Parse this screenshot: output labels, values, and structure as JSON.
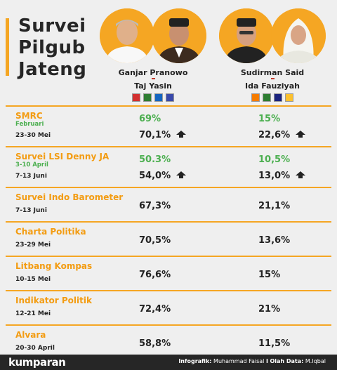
{
  "title": "Survei\nPilgub\nJateng",
  "candidates": [
    {
      "names": [
        "Ganjar Pranowo",
        "Taj Yasin"
      ],
      "logos": [
        "#d32f2f",
        "#2e7d32",
        "#1565c0",
        "#3949ab"
      ]
    },
    {
      "names": [
        "Sudirman Said",
        "Ida Fauziyah"
      ],
      "logos": [
        "#f57c00",
        "#2e7d32",
        "#1a237e",
        "#fbc02d"
      ]
    }
  ],
  "rows": [
    {
      "pollster": "SMRC",
      "earlier_label": "Februari",
      "earlier_a": "69%",
      "earlier_b": "15%",
      "date": "23-30 Mei",
      "a": "70,1%",
      "b": "22,6%",
      "arrow_a": "up-arrow-icon",
      "arrow_b": "up-arrow-icon"
    },
    {
      "pollster": "Survei LSI Denny JA",
      "earlier_label": "3-10 April",
      "earlier_a": "50.3%",
      "earlier_b": "10,5%",
      "date": "7-13 Juni",
      "a": "54,0%",
      "b": "13,0%",
      "arrow_a": "up-arrow-icon",
      "arrow_b": "up-arrow-icon"
    },
    {
      "pollster": "Survei Indo Barometer",
      "date": "7-13 Juni",
      "a": "67,3%",
      "b": "21,1%"
    },
    {
      "pollster": "Charta Politika",
      "date": "23-29 Mei",
      "a": "70,5%",
      "b": "13,6%"
    },
    {
      "pollster": "Litbang Kompas",
      "date": "10-15 Mei",
      "a": "76,6%",
      "b": "15%"
    },
    {
      "pollster": "Indikator Politik",
      "date": "12-21 Mei",
      "a": "72,4%",
      "b": "21%"
    },
    {
      "pollster": "Alvara",
      "date": "20-30 April",
      "a": "58,8%",
      "b": "11,5%"
    }
  ],
  "footer": {
    "brand": "kumparan",
    "infografik_label": "Infografik:",
    "infografik_name": "Muhammad Faisal",
    "separator": "I",
    "olah_label": "Olah Data:",
    "olah_name": "M.Iqbal"
  },
  "colors": {
    "accent": "#f5a623",
    "green": "#4caf50",
    "pollster": "#f39c12",
    "dark": "#262626"
  }
}
